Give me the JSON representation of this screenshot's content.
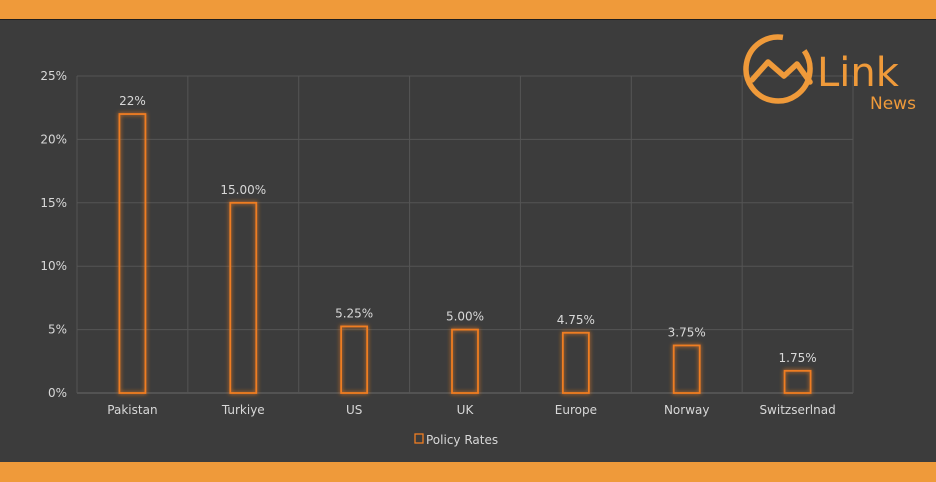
{
  "brand": {
    "name": "Link",
    "sub": "News",
    "color": "#ef9a3a"
  },
  "chart_data": {
    "type": "bar",
    "categories": [
      "Pakistan",
      "Turkiye",
      "US",
      "UK",
      "Europe",
      "Norway",
      "Switzserlnad"
    ],
    "series": [
      {
        "name": "Policy Rates",
        "values": [
          22,
          15,
          5.25,
          5,
          4.75,
          3.75,
          1.75
        ],
        "color": "#ef7d22"
      }
    ],
    "data_labels": [
      "22%",
      "15.00%",
      "5.25%",
      "5.00%",
      "4.75%",
      "3.75%",
      "1.75%"
    ],
    "y_ticks": [
      "0%",
      "5%",
      "10%",
      "15%",
      "20%",
      "25%"
    ],
    "ylim": [
      0,
      25
    ],
    "grid": true,
    "legend_position": "bottom"
  }
}
